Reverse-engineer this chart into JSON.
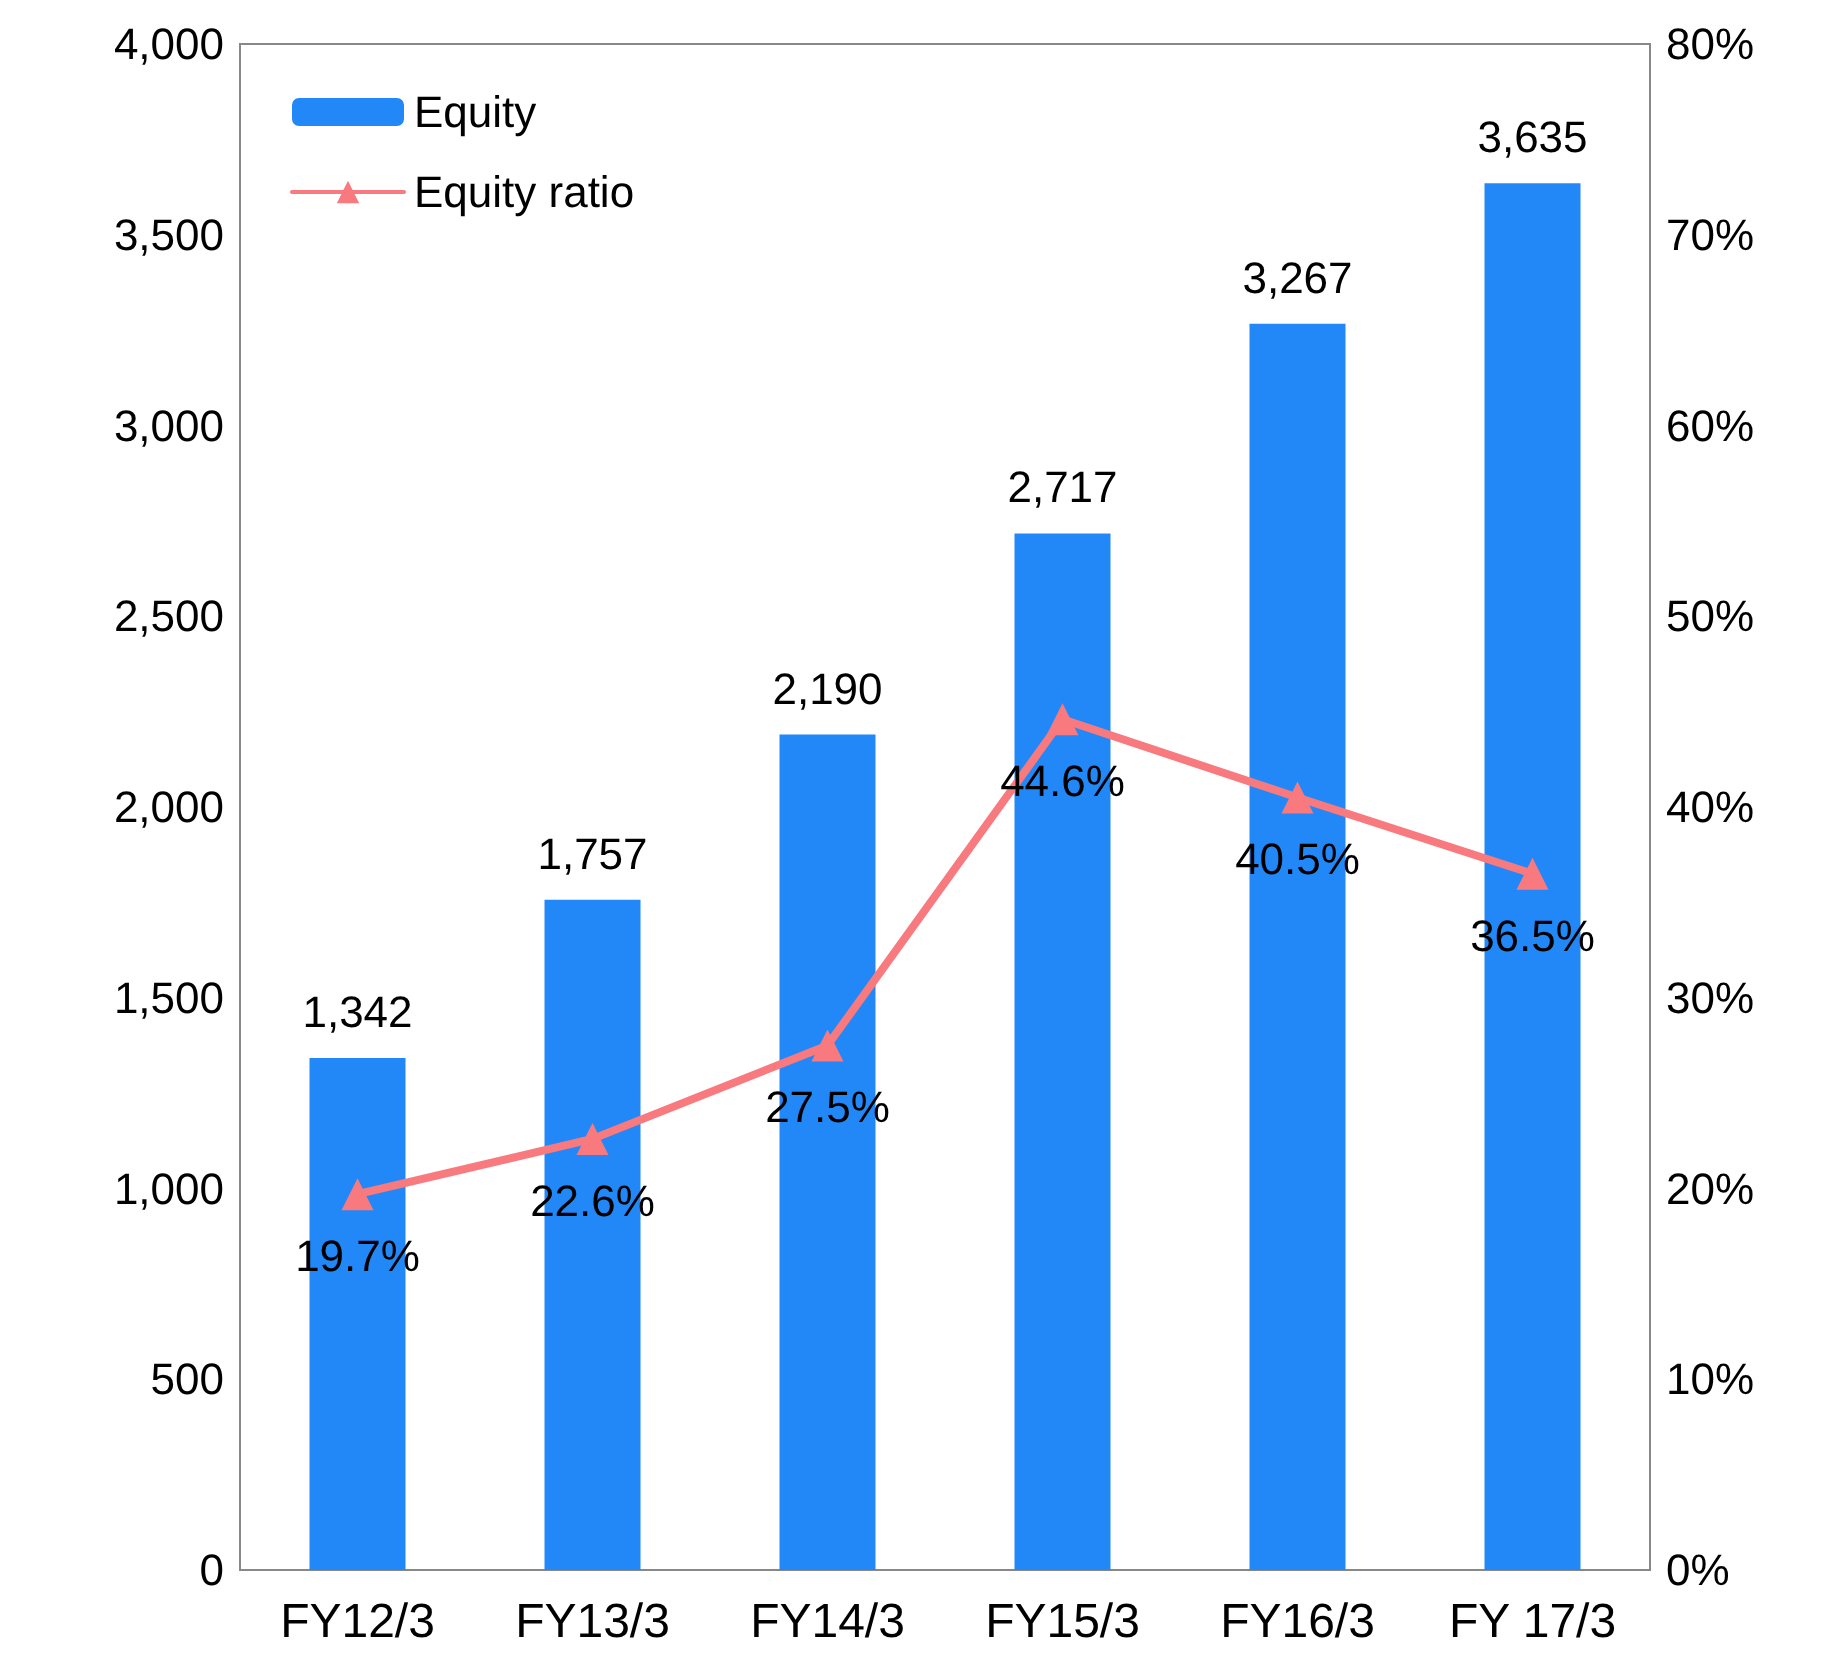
{
  "chart_data": {
    "type": "bar",
    "categories": [
      "FY12/3",
      "FY13/3",
      "FY14/3",
      "FY15/3",
      "FY16/3",
      "FY 17/3"
    ],
    "series": [
      {
        "name": "Equity",
        "type": "bar",
        "color": "#2288f8",
        "values": [
          1342,
          1757,
          2190,
          2717,
          3267,
          3635
        ],
        "value_labels": [
          "1,342",
          "1,757",
          "2,190",
          "2,717",
          "3,267",
          "3,635"
        ]
      },
      {
        "name": "Equity ratio",
        "type": "line",
        "axis": "y2",
        "color": "#f87a7e",
        "marker": "triangle",
        "line_style": "solid",
        "values": [
          19.7,
          22.6,
          27.5,
          44.6,
          40.5,
          36.5
        ],
        "value_labels": [
          "19.7%",
          "22.6%",
          "27.5%",
          "44.6%",
          "40.5%",
          "36.5%"
        ]
      }
    ],
    "ylim": [
      0,
      4000
    ],
    "yticks": [
      {
        "value": 0,
        "label": "0"
      },
      {
        "value": 500,
        "label": "500"
      },
      {
        "value": 1000,
        "label": "1,000"
      },
      {
        "value": 1500,
        "label": "1,500"
      },
      {
        "value": 2000,
        "label": "2,000"
      },
      {
        "value": 2500,
        "label": "2,500"
      },
      {
        "value": 3000,
        "label": "3,000"
      },
      {
        "value": 3500,
        "label": "3,500"
      },
      {
        "value": 4000,
        "label": "4,000"
      }
    ],
    "y2lim": [
      0,
      80
    ],
    "y2ticks": [
      {
        "value": 0,
        "label": "0%"
      },
      {
        "value": 10,
        "label": "10%"
      },
      {
        "value": 20,
        "label": "20%"
      },
      {
        "value": 30,
        "label": "30%"
      },
      {
        "value": 40,
        "label": "40%"
      },
      {
        "value": 50,
        "label": "50%"
      },
      {
        "value": 60,
        "label": "60%"
      },
      {
        "value": 70,
        "label": "70%"
      },
      {
        "value": 80,
        "label": "80%"
      }
    ],
    "grid": false,
    "legend": "top left"
  }
}
